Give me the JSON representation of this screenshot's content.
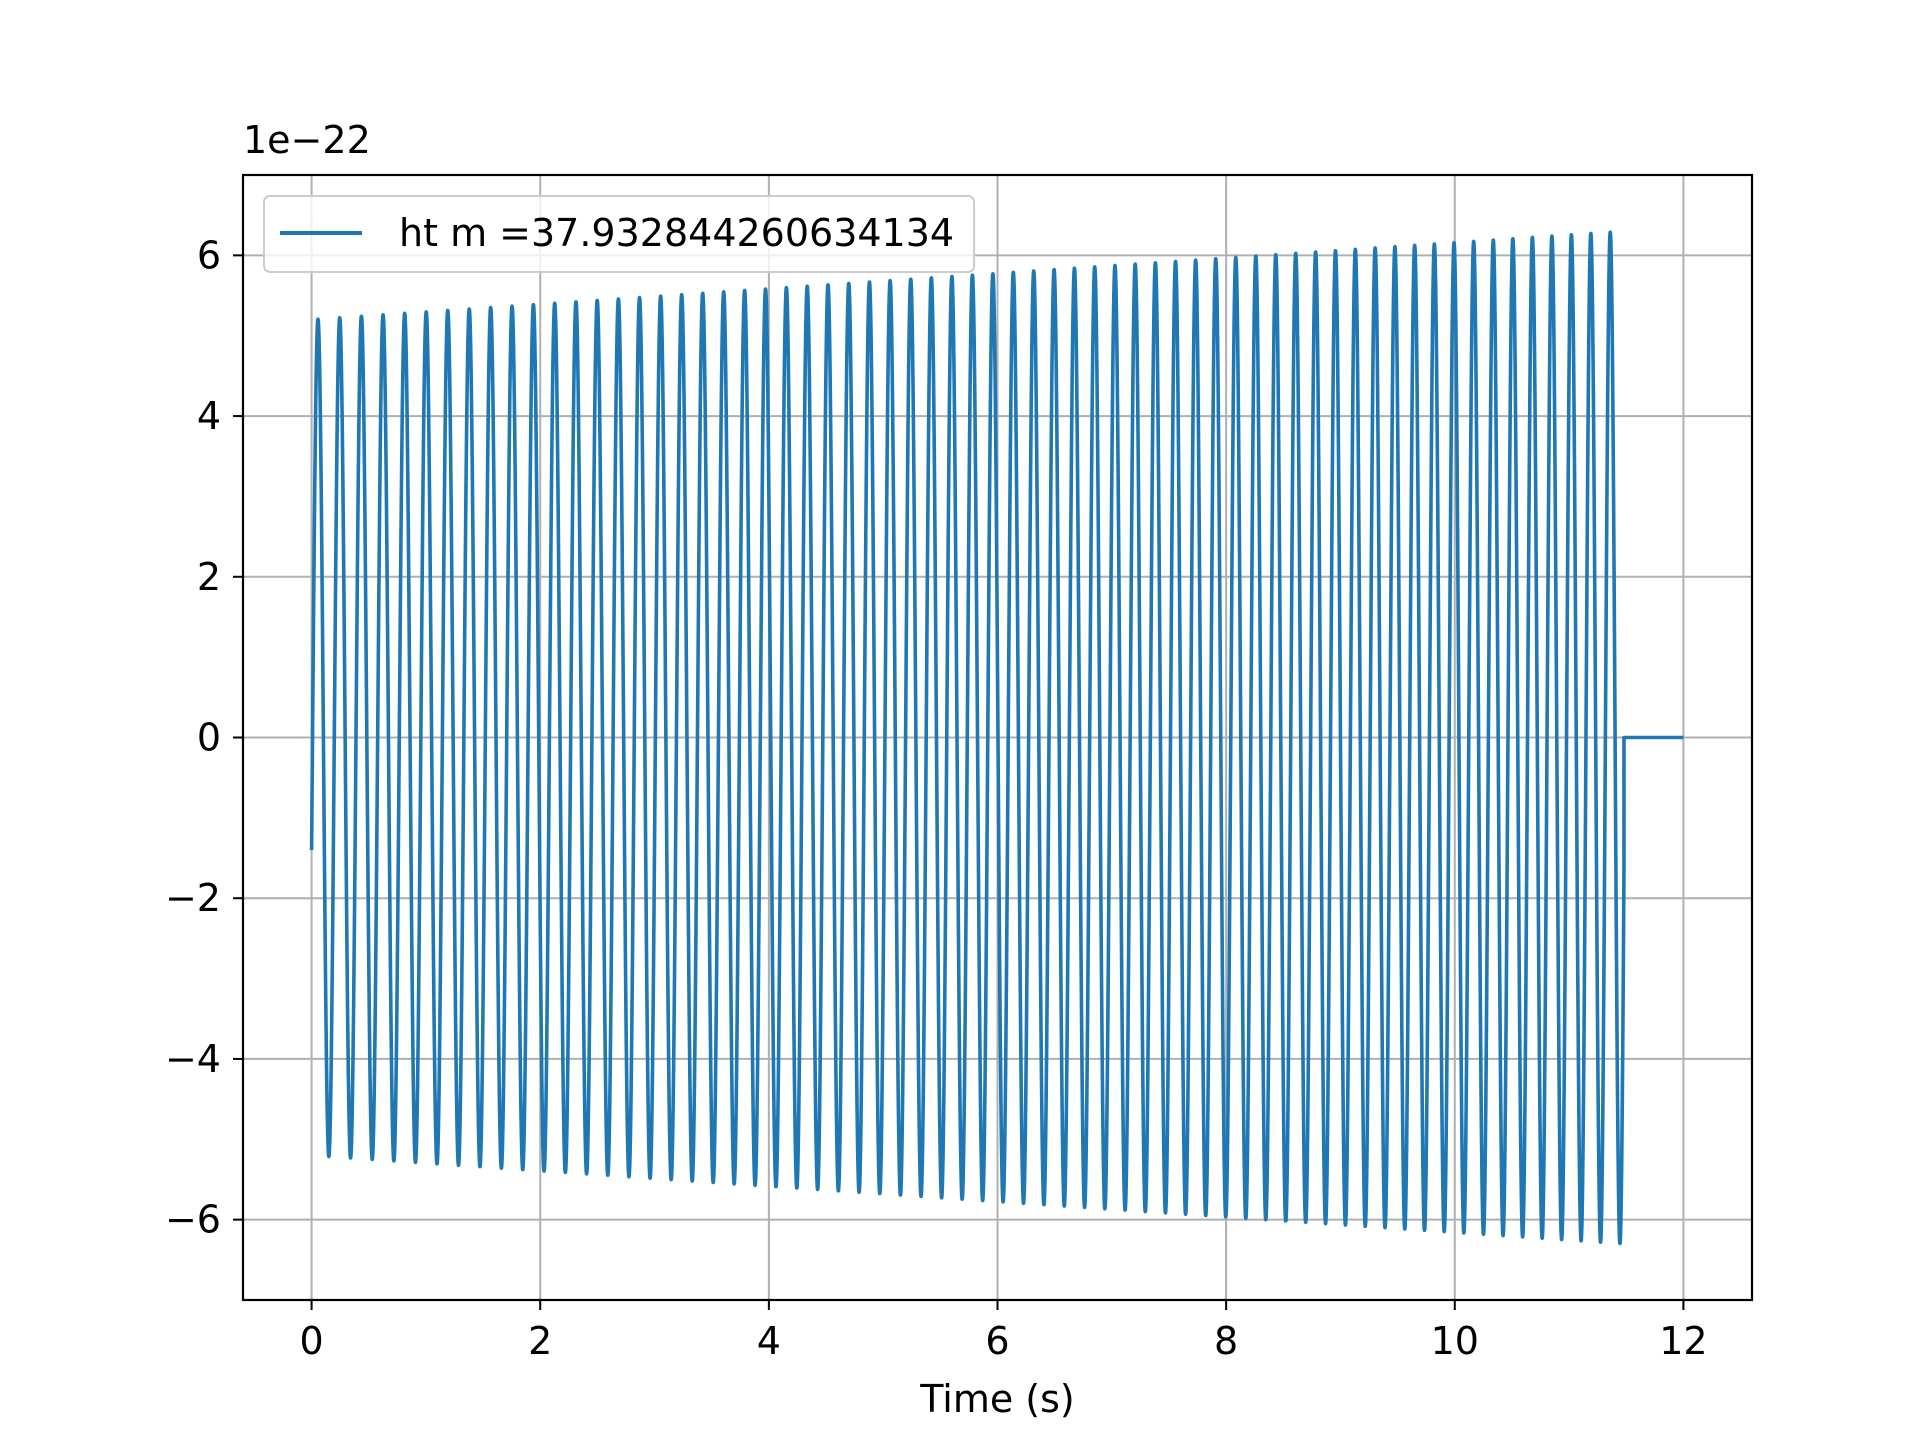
{
  "chart_data": {
    "type": "line",
    "title": "",
    "xlabel": "Time (s)",
    "ylabel": "",
    "y_offset_label": "1e−22",
    "xlim": [
      -0.6,
      12.6
    ],
    "ylim": [
      -7.0,
      7.0
    ],
    "x_ticks": [
      0,
      2,
      4,
      6,
      8,
      10,
      12
    ],
    "x_tick_labels": [
      "0",
      "2",
      "4",
      "6",
      "8",
      "10",
      "12"
    ],
    "y_ticks": [
      -6,
      -4,
      -2,
      0,
      2,
      4,
      6
    ],
    "y_tick_labels": [
      "−6",
      "−4",
      "−2",
      "0",
      "2",
      "4",
      "6"
    ],
    "grid": true,
    "legend_position": "upper-left",
    "series": [
      {
        "name": "ht m =37.932844260634134",
        "color": "#1f77b4",
        "signal": {
          "t_start": 0.0,
          "t_signal_end": 11.48,
          "t_end": 12.0,
          "amplitude_start": 5.2,
          "amplitude_end": 6.3,
          "frequency_start_hz": 5.25,
          "frequency_end_hz": 5.9,
          "initial_value": -1.4,
          "tail_value": 0.0
        }
      }
    ]
  }
}
